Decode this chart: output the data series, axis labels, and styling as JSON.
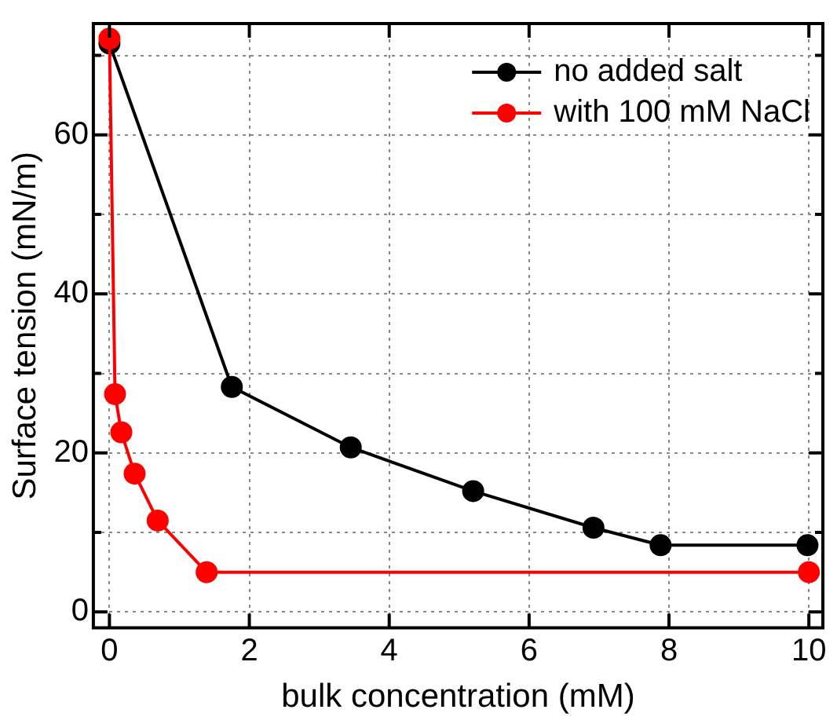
{
  "chart_data": {
    "type": "line",
    "xlabel": "bulk concentration (mM)",
    "ylabel": "Surface tension (mN/m)",
    "xlim": [
      -0.23,
      10.2
    ],
    "xticks": [
      0,
      2,
      4,
      6,
      8,
      10
    ],
    "ylim": [
      -2,
      74
    ],
    "yticks": [
      0,
      {
        "value": 10,
        "label": null
      },
      20,
      {
        "value": 30,
        "label": null
      },
      40,
      {
        "value": 50,
        "label": null
      },
      60,
      {
        "value": 70,
        "label": null
      }
    ],
    "grid": true,
    "legend": "top right",
    "marker": "circle",
    "line_style": "solid",
    "series": [
      {
        "name": "no added salt",
        "color": "#000000",
        "x": [
          0,
          1.75,
          3.45,
          5.2,
          6.92,
          7.88,
          9.98
        ],
        "values": [
          71.5,
          28.3,
          20.7,
          15.2,
          10.6,
          8.4,
          8.4
        ]
      },
      {
        "name": "with 100 mM NaCl",
        "color": "#ff0000",
        "x": [
          0,
          0.08,
          0.17,
          0.36,
          0.69,
          1.39,
          10
        ],
        "values": [
          72.1,
          27.4,
          22.6,
          17.4,
          11.5,
          5.0,
          5.0
        ]
      }
    ]
  }
}
